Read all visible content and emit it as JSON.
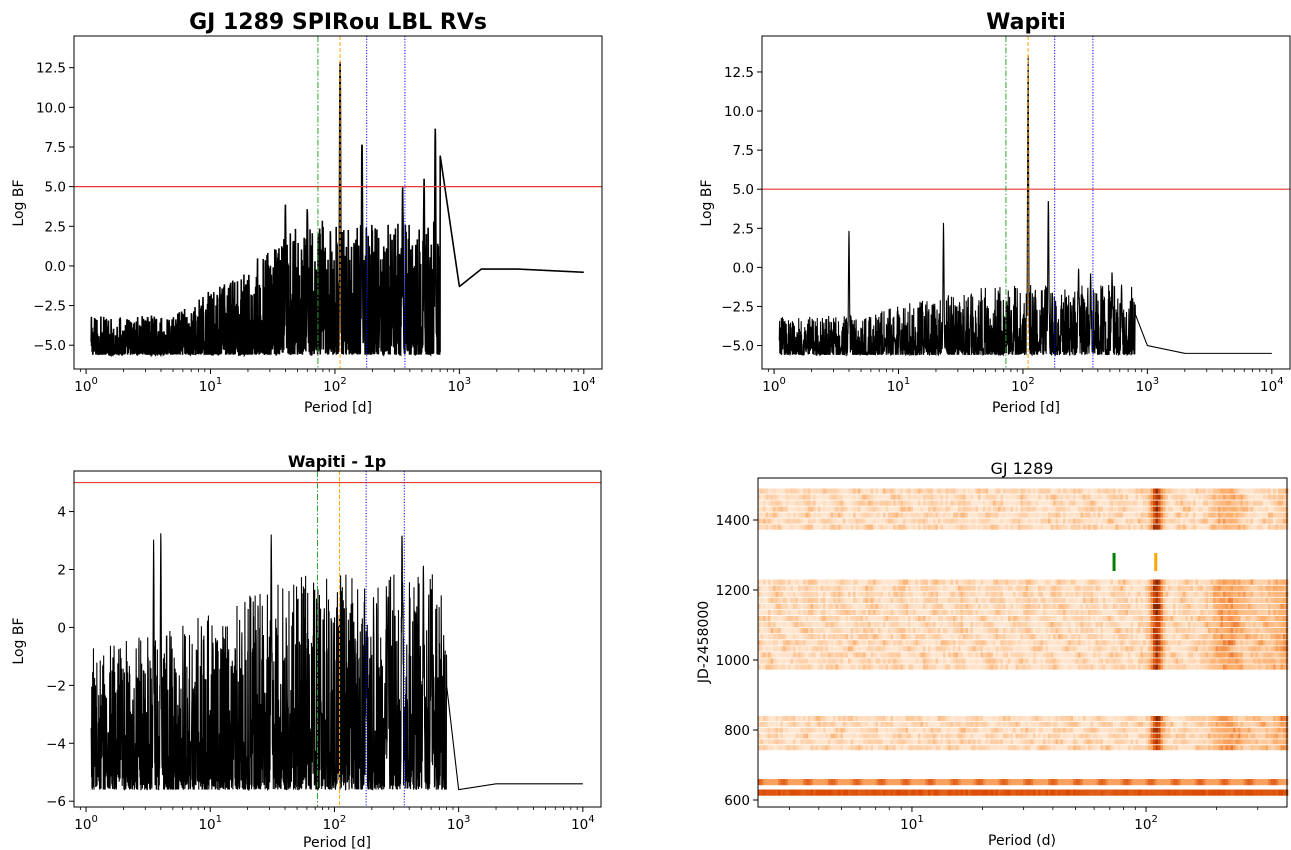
{
  "chart_data": [
    {
      "type": "line",
      "title": "GJ 1289 SPIRou LBL RVs",
      "xlabel": "Period [d]",
      "ylabel": "Log BF",
      "xscale": "log",
      "xlim": [
        0.8,
        14000
      ],
      "ylim": [
        -6.5,
        14.5
      ],
      "xticks": [
        1,
        10,
        100,
        1000,
        10000
      ],
      "yticks": [
        -5.0,
        -2.5,
        0.0,
        2.5,
        5.0,
        7.5,
        10.0,
        12.5
      ],
      "yticklabels": [
        "−5.0",
        "−2.5",
        "0.0",
        "2.5",
        "5.0",
        "7.5",
        "10.0",
        "12.5"
      ],
      "threshold": 5.0,
      "vlines": [
        {
          "x": 73,
          "color": "#2ca02c",
          "style": "dashdot"
        },
        {
          "x": 110,
          "color": "#ffa500",
          "style": "dashed"
        },
        {
          "x": 180,
          "color": "#0000ff",
          "style": "dotted"
        },
        {
          "x": 365,
          "color": "#0000ff",
          "style": "dotted"
        }
      ],
      "floor": -5.6,
      "noise_amp": [
        [
          1,
          2.5
        ],
        [
          5,
          2.5
        ],
        [
          15,
          5.0
        ],
        [
          60,
          8.5
        ]
      ],
      "peaks": [
        [
          40,
          3.9
        ],
        [
          60,
          4.0
        ],
        [
          110,
          13.7
        ],
        [
          165,
          8.5
        ],
        [
          230,
          -1.2
        ],
        [
          290,
          -1.0
        ],
        [
          350,
          5.0
        ],
        [
          520,
          5.8
        ],
        [
          640,
          9.6
        ]
      ],
      "tail": [
        [
          700,
          7.0
        ],
        [
          1000,
          -1.3
        ],
        [
          1500,
          -0.2
        ],
        [
          3000,
          -0.2
        ],
        [
          10000,
          -0.4
        ]
      ],
      "line_width": 1.6
    },
    {
      "type": "line",
      "title": "Wapiti",
      "xlabel": "Period [d]",
      "ylabel": "Log BF",
      "xscale": "log",
      "xlim": [
        0.8,
        14000
      ],
      "ylim": [
        -6.5,
        14.8
      ],
      "xticks": [
        1,
        10,
        100,
        1000,
        10000
      ],
      "yticks": [
        -5.0,
        -2.5,
        0.0,
        2.5,
        5.0,
        7.5,
        10.0,
        12.5
      ],
      "yticklabels": [
        "−5.0",
        "−2.5",
        "0.0",
        "2.5",
        "5.0",
        "7.5",
        "10.0",
        "12.5"
      ],
      "threshold": 5.0,
      "vlines": [
        {
          "x": 73,
          "color": "#2ca02c",
          "style": "dashdot"
        },
        {
          "x": 110,
          "color": "#ffa500",
          "style": "dashed"
        },
        {
          "x": 180,
          "color": "#0000ff",
          "style": "dotted"
        },
        {
          "x": 365,
          "color": "#0000ff",
          "style": "dotted"
        }
      ],
      "floor": -5.6,
      "noise_amp": [
        [
          1,
          2.5
        ],
        [
          5,
          2.5
        ],
        [
          15,
          3.5
        ],
        [
          60,
          4.5
        ]
      ],
      "peaks": [
        [
          4,
          2.4
        ],
        [
          23,
          2.9
        ],
        [
          110,
          14.0
        ],
        [
          160,
          5.0
        ],
        [
          280,
          0.1
        ],
        [
          350,
          -0.2
        ],
        [
          520,
          0.0
        ],
        [
          620,
          -1.0
        ]
      ],
      "tail": [
        [
          800,
          -3.0
        ],
        [
          1000,
          -5.0
        ],
        [
          2000,
          -5.5
        ],
        [
          10000,
          -5.5
        ]
      ],
      "line_width": 1.1
    },
    {
      "type": "line",
      "title": "Wapiti - 1p",
      "xlabel": "Period [d]",
      "ylabel": "Log BF",
      "xscale": "log",
      "xlim": [
        0.8,
        14000
      ],
      "ylim": [
        -6.2,
        5.4
      ],
      "xticks": [
        1,
        10,
        100,
        1000,
        10000
      ],
      "yticks": [
        -6,
        -4,
        -2,
        0,
        2,
        4
      ],
      "yticklabels": [
        "−6",
        "−4",
        "−2",
        "0",
        "2",
        "4"
      ],
      "threshold": 5.0,
      "vlines": [
        {
          "x": 73,
          "color": "#2ca02c",
          "style": "dashdot"
        },
        {
          "x": 110,
          "color": "#ffa500",
          "style": "dashed"
        },
        {
          "x": 180,
          "color": "#0000ff",
          "style": "dotted"
        },
        {
          "x": 365,
          "color": "#0000ff",
          "style": "dotted"
        }
      ],
      "floor": -5.6,
      "noise_amp": [
        [
          1,
          5.0
        ],
        [
          5,
          5.5
        ],
        [
          15,
          6.5
        ],
        [
          60,
          7.5
        ]
      ],
      "peaks": [
        [
          3.5,
          3.2
        ],
        [
          4,
          3.5
        ],
        [
          31,
          3.6
        ],
        [
          180,
          0.2
        ],
        [
          270,
          1.5
        ],
        [
          350,
          3.7
        ],
        [
          520,
          2.6
        ],
        [
          600,
          1.5
        ]
      ],
      "tail": [
        [
          800,
          -2.0
        ],
        [
          1000,
          -5.6
        ],
        [
          2000,
          -5.4
        ],
        [
          10000,
          -5.4
        ]
      ],
      "line_width": 1.1
    },
    {
      "type": "heatmap",
      "title": "GJ 1289",
      "xlabel": "Period (d)",
      "ylabel": "JD-2458000",
      "xscale": "log",
      "xlim": [
        2.2,
        400
      ],
      "ylim": [
        580,
        1520
      ],
      "xticks": [
        10,
        100
      ],
      "yticks": [
        600,
        800,
        1000,
        1200,
        1400
      ],
      "yticklabels": [
        "600",
        "800",
        "1000",
        "1200",
        "1400"
      ],
      "blocks": [
        [
          610,
          630
        ],
        [
          640,
          660
        ],
        [
          740,
          840
        ],
        [
          970,
          1230
        ],
        [
          1370,
          1490
        ]
      ],
      "markers": [
        {
          "x": 73,
          "y": 1280,
          "color": "#008000"
        },
        {
          "x": 110,
          "y": 1280,
          "color": "#ffa500"
        }
      ],
      "colormap": "Oranges"
    }
  ]
}
